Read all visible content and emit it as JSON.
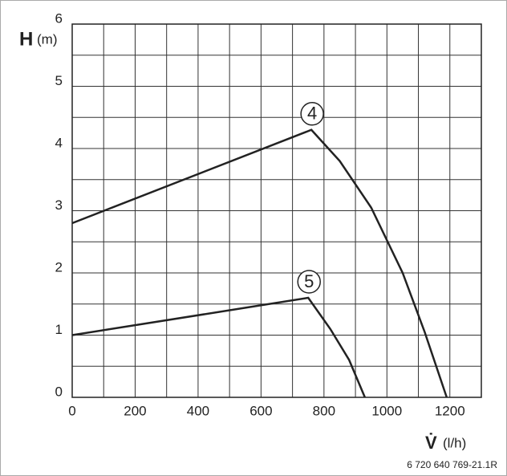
{
  "chart_data": {
    "type": "line",
    "y_label": "H",
    "y_unit": "(m)",
    "x_label": "V̇",
    "x_unit": "(l/h)",
    "footnote": "6 720 640 769-21.1R",
    "xlim": [
      0,
      1300
    ],
    "ylim": [
      0,
      6
    ],
    "xticks": [
      0,
      200,
      400,
      600,
      800,
      1000,
      1200
    ],
    "yticks": [
      0,
      1,
      2,
      3,
      4,
      5,
      6
    ],
    "x_grid": [
      100,
      200,
      300,
      400,
      500,
      600,
      700,
      800,
      900,
      1000,
      1100,
      1200
    ],
    "y_grid": [
      0.5,
      1,
      1.5,
      2,
      2.5,
      3,
      3.5,
      4,
      4.5,
      5,
      5.5
    ],
    "grid": true,
    "series": [
      {
        "name": "4",
        "color": "#222222",
        "x": [
          0,
          760,
          850,
          950,
          1050,
          1120,
          1190
        ],
        "values": [
          2.8,
          4.3,
          3.8,
          3.05,
          2.0,
          1.05,
          0
        ]
      },
      {
        "name": "5",
        "color": "#222222",
        "x": [
          0,
          750,
          820,
          880,
          930
        ],
        "values": [
          1.0,
          1.6,
          1.1,
          0.6,
          0
        ]
      }
    ]
  }
}
